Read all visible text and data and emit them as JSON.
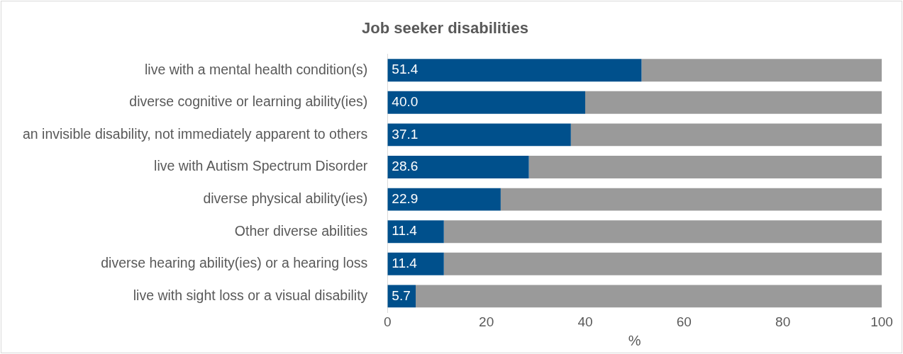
{
  "chart_data": {
    "type": "bar",
    "orientation": "horizontal",
    "stacked": true,
    "title": "Job seeker disabilities",
    "xlabel": "%",
    "categories": [
      "live with a mental health condition(s)",
      "diverse cognitive or learning ability(ies)",
      "an invisible disability, not immediately apparent to others",
      "live with Autism Spectrum Disorder",
      "diverse physical ability(ies)",
      "Other diverse abilities",
      "diverse hearing ability(ies) or a hearing loss",
      "live with sight loss or a visual disability"
    ],
    "series": [
      {
        "color": "#00508c",
        "values": [
          51.4,
          40.0,
          37.1,
          28.6,
          22.9,
          11.4,
          11.4,
          5.7
        ],
        "value_labels": [
          "51.4",
          "40.0",
          "37.1",
          "28.6",
          "22.9",
          "11.4",
          "11.4",
          "5.7"
        ]
      },
      {
        "color": "#9a9a9a",
        "values": [
          48.6,
          60.0,
          62.9,
          71.4,
          77.1,
          88.6,
          88.6,
          94.3
        ]
      }
    ],
    "xlim": [
      0,
      100
    ],
    "xticks": [
      0,
      20,
      40,
      60,
      80,
      100
    ],
    "grid": false,
    "legend": false
  }
}
